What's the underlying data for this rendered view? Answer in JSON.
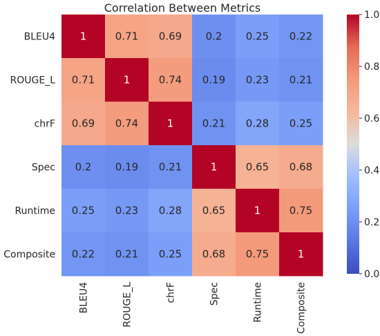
{
  "chart_data": {
    "type": "heatmap",
    "title": "Correlation Between Metrics",
    "xlabel": "",
    "ylabel": "",
    "row_labels": [
      "BLEU4",
      "ROUGE_L",
      "chrF",
      "Spec",
      "Runtime",
      "Composite"
    ],
    "col_labels": [
      "BLEU4",
      "ROUGE_L",
      "chrF",
      "Spec",
      "Runtime",
      "Composite"
    ],
    "values": [
      [
        1,
        0.71,
        0.69,
        0.2,
        0.25,
        0.22
      ],
      [
        0.71,
        1,
        0.74,
        0.19,
        0.23,
        0.21
      ],
      [
        0.69,
        0.74,
        1,
        0.21,
        0.28,
        0.25
      ],
      [
        0.2,
        0.19,
        0.21,
        1,
        0.65,
        0.68
      ],
      [
        0.25,
        0.23,
        0.28,
        0.65,
        1,
        0.75
      ],
      [
        0.22,
        0.21,
        0.25,
        0.68,
        0.75,
        1
      ]
    ],
    "annotations": [
      [
        "1",
        "0.71",
        "0.69",
        "0.2",
        "0.25",
        "0.22"
      ],
      [
        "0.71",
        "1",
        "0.74",
        "0.19",
        "0.23",
        "0.21"
      ],
      [
        "0.69",
        "0.74",
        "1",
        "0.21",
        "0.28",
        "0.25"
      ],
      [
        "0.2",
        "0.19",
        "0.21",
        "1",
        "0.65",
        "0.68"
      ],
      [
        "0.25",
        "0.23",
        "0.28",
        "0.65",
        "1",
        "0.75"
      ],
      [
        "0.22",
        "0.21",
        "0.25",
        "0.68",
        "0.75",
        "1"
      ]
    ],
    "colormap": "coolwarm",
    "colorbar": {
      "vmin": 0.0,
      "vmax": 1.0,
      "ticks": [
        0.0,
        0.2,
        0.4,
        0.6,
        0.8,
        1.0
      ],
      "tick_labels": [
        "0.0",
        "0.2",
        "0.4",
        "0.6",
        "0.8",
        "1.0"
      ]
    },
    "grid": false,
    "legend": "colorbar-right"
  }
}
